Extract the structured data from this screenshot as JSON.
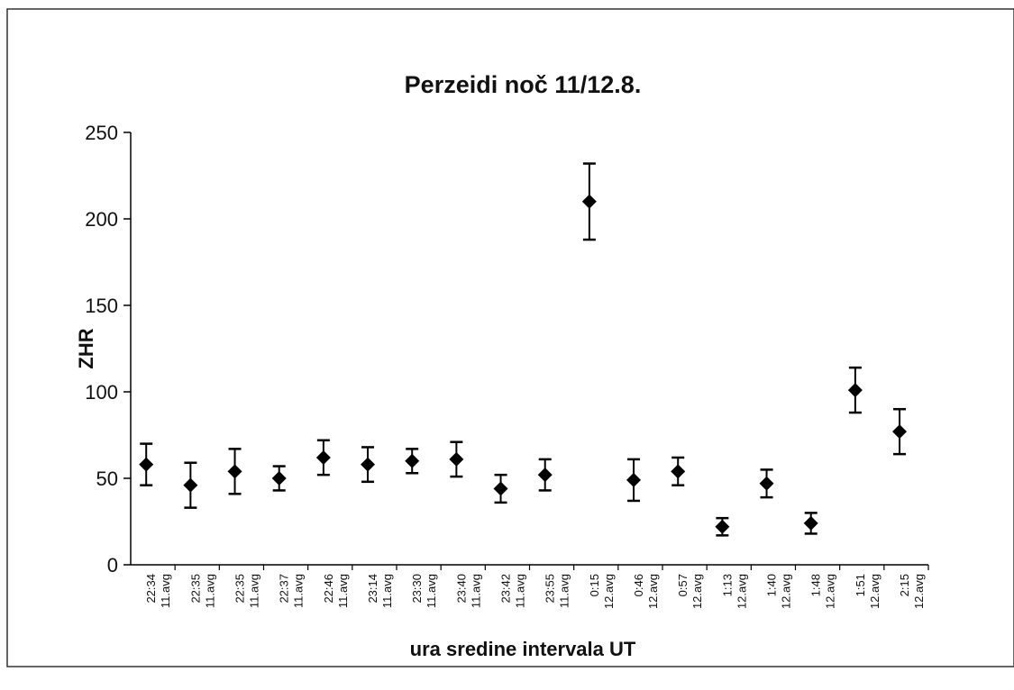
{
  "chart_data": {
    "type": "errorbar",
    "title": "Perzeidi noč 11/12.8.",
    "xlabel": "ura sredine intervala UT",
    "ylabel": "ZHR",
    "categories": [
      [
        "22:34",
        "11.avg"
      ],
      [
        "22:35",
        "11.avg"
      ],
      [
        "22:35",
        "11.avg"
      ],
      [
        "22:37",
        "11.avg"
      ],
      [
        "22:46",
        "11.avg"
      ],
      [
        "23:14",
        "11.avg"
      ],
      [
        "23:30",
        "11.avg"
      ],
      [
        "23:40",
        "11.avg"
      ],
      [
        "23:42",
        "11.avg"
      ],
      [
        "23:55",
        "11.avg"
      ],
      [
        "0:15",
        "12.avg"
      ],
      [
        "0:46",
        "12.avg"
      ],
      [
        "0:57",
        "12.avg"
      ],
      [
        "1:13",
        "12.avg"
      ],
      [
        "1:40",
        "12.avg"
      ],
      [
        "1:48",
        "12.avg"
      ],
      [
        "1:51",
        "12.avg"
      ],
      [
        "2:15",
        "12.avg"
      ]
    ],
    "values": [
      58,
      46,
      54,
      50,
      62,
      58,
      60,
      61,
      44,
      52,
      210,
      49,
      54,
      22,
      47,
      24,
      101,
      77
    ],
    "errors": [
      12,
      13,
      13,
      7,
      10,
      10,
      7,
      10,
      8,
      9,
      22,
      12,
      8,
      5,
      8,
      6,
      13,
      13
    ],
    "color": "#000000",
    "ylim": [
      0,
      250
    ],
    "yticks": [
      0,
      50,
      100,
      150,
      200,
      250
    ]
  }
}
